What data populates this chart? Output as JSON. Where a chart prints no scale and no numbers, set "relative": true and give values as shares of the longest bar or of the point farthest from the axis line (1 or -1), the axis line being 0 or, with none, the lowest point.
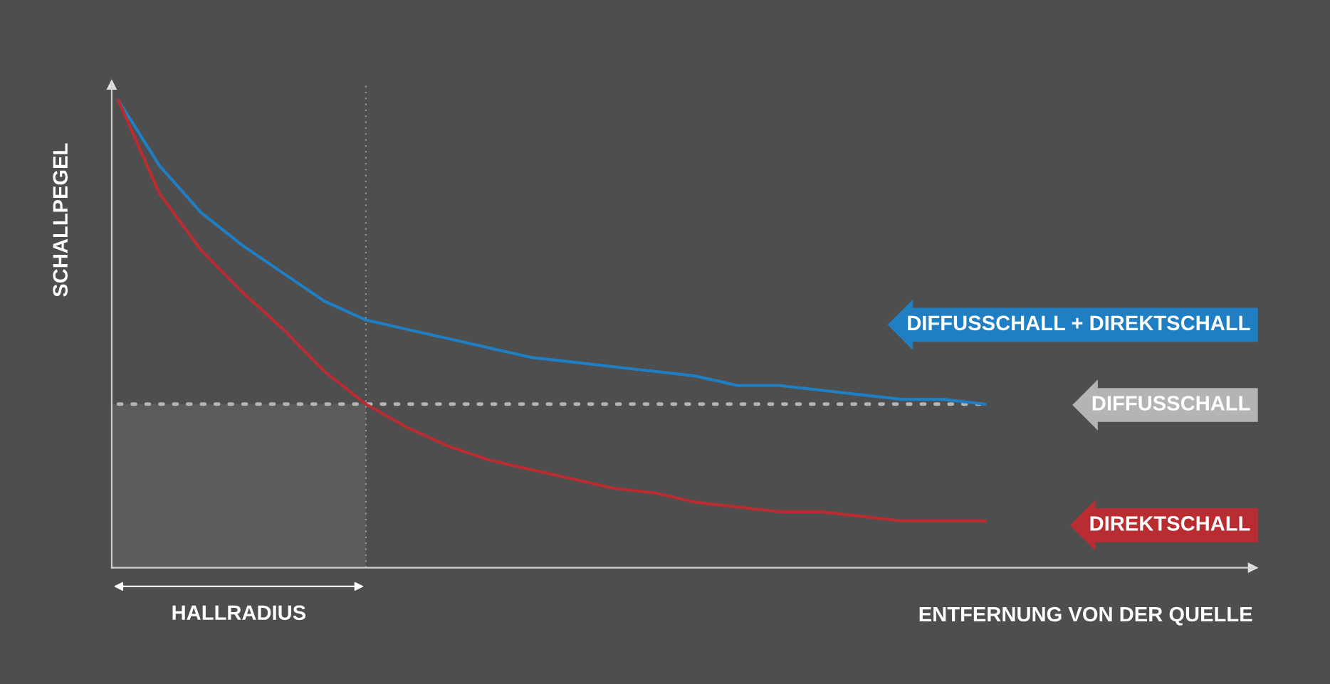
{
  "chart_data": {
    "type": "line",
    "relative": true,
    "xlabel": "ENTFERNUNG VON DER QUELLE",
    "ylabel": "SCHALLPEGEL",
    "categories": [
      null,
      null,
      null,
      null,
      null,
      null,
      null,
      null,
      null,
      null,
      null,
      null,
      null,
      null,
      null,
      null,
      null,
      null,
      null,
      null,
      null,
      null
    ],
    "series": [
      {
        "name": "DIFFUSSCHALL + DIREKTSCHALL",
        "color": "#1f7fc2",
        "line_style": "solid",
        "values": [
          1,
          0.86,
          0.76,
          0.69,
          0.63,
          0.57,
          0.53,
          0.51,
          0.49,
          0.47,
          0.45,
          0.44,
          0.43,
          0.42,
          0.41,
          0.39,
          0.39,
          0.38,
          0.37,
          0.36,
          0.36,
          0.35
        ]
      },
      {
        "name": "DIFFUSSCHALL",
        "color": "#b4b4b4",
        "line_style": "dotted",
        "values": [
          0.35,
          0.35,
          0.35,
          0.35,
          0.35,
          0.35,
          0.35,
          0.35,
          0.35,
          0.35,
          0.35,
          0.35,
          0.35,
          0.35,
          0.35,
          0.35,
          0.35,
          0.35,
          0.35,
          0.35,
          0.35,
          0.35
        ]
      },
      {
        "name": "DIREKTSCHALL",
        "color": "#b82c32",
        "line_style": "solid",
        "values": [
          1,
          0.8,
          0.68,
          0.59,
          0.51,
          0.42,
          0.35,
          0.3,
          0.26,
          0.23,
          0.21,
          0.19,
          0.17,
          0.16,
          0.14,
          0.13,
          0.12,
          0.12,
          0.11,
          0.1,
          0.1,
          0.1
        ]
      }
    ],
    "annotations": [
      "HALLRADIUS"
    ],
    "marker": "none"
  }
}
